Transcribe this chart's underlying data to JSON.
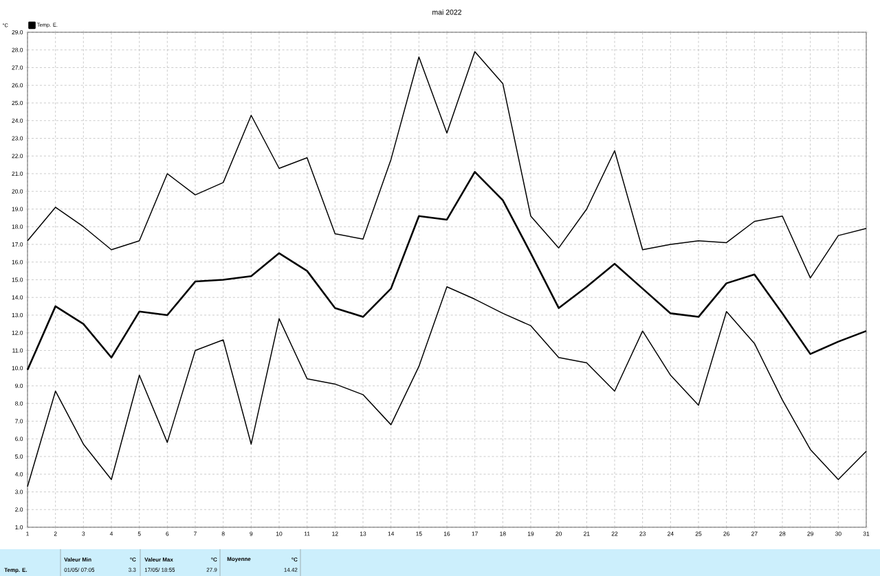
{
  "chart_data": {
    "type": "line",
    "title": "mai 2022",
    "ylabel": "°C",
    "x": [
      1,
      2,
      3,
      4,
      5,
      6,
      7,
      8,
      9,
      10,
      11,
      12,
      13,
      14,
      15,
      16,
      17,
      18,
      19,
      20,
      21,
      22,
      23,
      24,
      25,
      26,
      27,
      28,
      29,
      30,
      31
    ],
    "series": [
      {
        "name": "Temp. E.",
        "color": "#000000",
        "values": [
          9.9,
          13.5,
          12.5,
          10.6,
          13.2,
          13.0,
          14.9,
          15.0,
          15.2,
          16.5,
          15.5,
          13.4,
          12.9,
          14.5,
          18.6,
          18.4,
          21.1,
          19.5,
          16.5,
          13.4,
          14.6,
          15.9,
          14.5,
          13.1,
          12.9,
          14.8,
          15.3,
          13.1,
          10.8,
          11.5,
          12.1
        ]
      },
      {
        "color": "#000000",
        "values": [
          17.2,
          19.1,
          18.0,
          16.7,
          17.2,
          21.0,
          19.8,
          20.5,
          24.3,
          21.3,
          21.9,
          17.6,
          17.3,
          21.8,
          27.6,
          23.3,
          27.9,
          26.1,
          18.6,
          16.8,
          19.0,
          22.3,
          16.7,
          17.0,
          17.2,
          17.1,
          18.3,
          18.6,
          15.1,
          17.5,
          17.9
        ]
      },
      {
        "color": "#000000",
        "values": [
          3.3,
          8.7,
          5.7,
          3.7,
          9.6,
          5.8,
          11.0,
          11.6,
          5.7,
          12.8,
          9.4,
          9.1,
          8.5,
          6.8,
          10.1,
          14.6,
          13.9,
          13.1,
          12.4,
          10.6,
          10.3,
          8.7,
          12.1,
          9.6,
          7.9,
          13.2,
          11.4,
          8.2,
          5.4,
          3.7,
          5.3
        ]
      }
    ],
    "xlim": [
      1,
      31
    ],
    "xticks": [
      1,
      2,
      3,
      4,
      5,
      6,
      7,
      8,
      9,
      10,
      11,
      12,
      13,
      14,
      15,
      16,
      17,
      18,
      19,
      20,
      21,
      22,
      23,
      24,
      25,
      26,
      27,
      28,
      29,
      30,
      31
    ],
    "ylim": [
      1,
      29
    ],
    "yticks": [
      {
        "value": 1,
        "label": "1.0"
      },
      {
        "value": 2,
        "label": "2.0"
      },
      {
        "value": 3,
        "label": "3.0"
      },
      {
        "value": 4,
        "label": "4.0"
      },
      {
        "value": 5,
        "label": "5.0"
      },
      {
        "value": 6,
        "label": "6.0"
      },
      {
        "value": 7,
        "label": "7.0"
      },
      {
        "value": 8,
        "label": "8.0"
      },
      {
        "value": 9,
        "label": "9.0"
      },
      {
        "value": 10,
        "label": "10.0"
      },
      {
        "value": 11,
        "label": "11.0"
      },
      {
        "value": 12,
        "label": "12.0"
      },
      {
        "value": 13,
        "label": "13.0"
      },
      {
        "value": 14,
        "label": "14.0"
      },
      {
        "value": 15,
        "label": "15.0"
      },
      {
        "value": 16,
        "label": "16.0"
      },
      {
        "value": 17,
        "label": "17.0"
      },
      {
        "value": 18,
        "label": "18.0"
      },
      {
        "value": 19,
        "label": "19.0"
      },
      {
        "value": 20,
        "label": "20.0"
      },
      {
        "value": 21,
        "label": "21.0"
      },
      {
        "value": 22,
        "label": "22.0"
      },
      {
        "value": 23,
        "label": "23.0"
      },
      {
        "value": 24,
        "label": "24.0"
      },
      {
        "value": 25,
        "label": "25.0"
      },
      {
        "value": 26,
        "label": "26.0"
      },
      {
        "value": 27,
        "label": "27.0"
      },
      {
        "value": 28,
        "label": "28.0"
      },
      {
        "value": 29,
        "label": "29.0"
      }
    ],
    "grid": true,
    "legend": "top left",
    "marker": "none",
    "line_style": "solid",
    "annotations": [
      "Temp. E.",
      "Valeur Min",
      "°C",
      "01/05/ 07:05",
      "3.3",
      "Valeur Max",
      "°C",
      "17/05/ 18:55",
      "27.9",
      "Moyenne",
      "°C",
      "14.42"
    ]
  }
}
